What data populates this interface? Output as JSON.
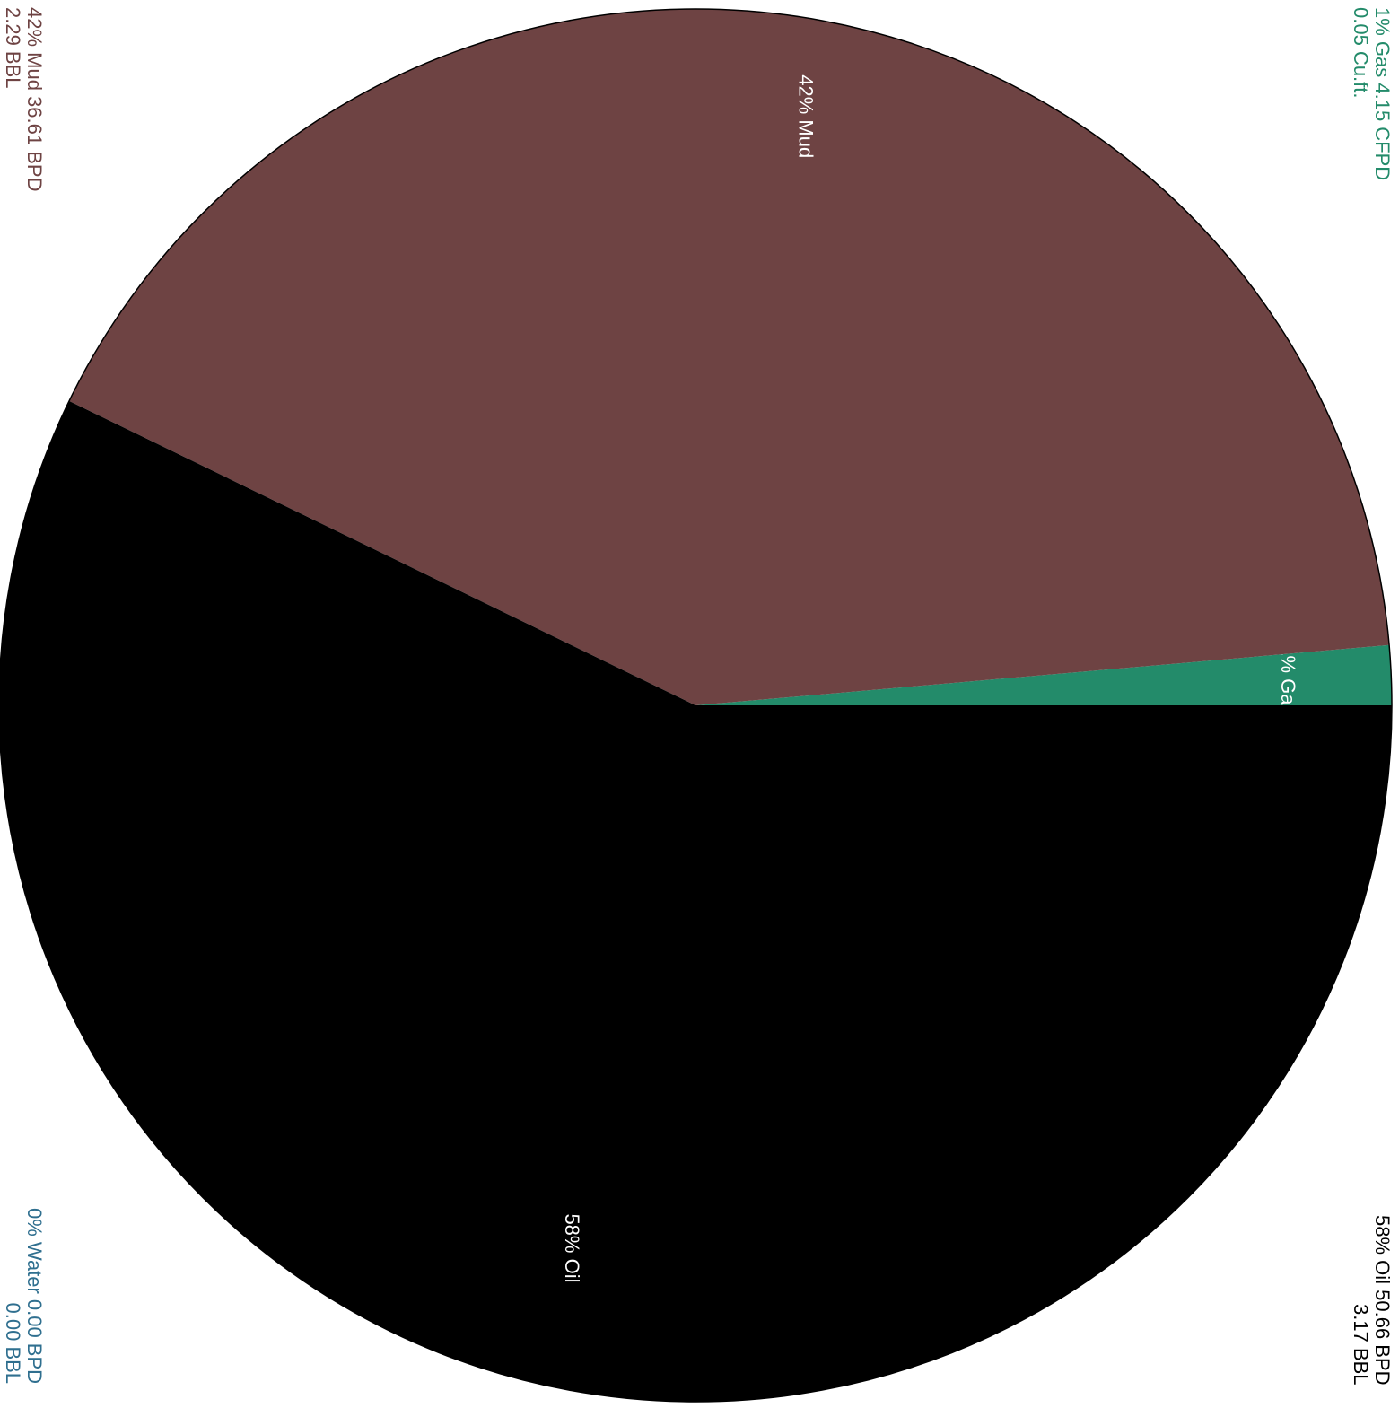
{
  "chart_data": {
    "type": "pie",
    "slices": [
      {
        "name": "Oil",
        "percent_label": "58% Oil",
        "value": 58,
        "color": "#000000"
      },
      {
        "name": "Mud",
        "percent_label": "42% Mud",
        "value": 42,
        "color": "#6e4343"
      },
      {
        "name": "Gas",
        "percent_label": "1% Gas",
        "value": 1.4,
        "color": "#238b6a"
      },
      {
        "name": "Water",
        "percent_label": "0% Water",
        "value": 0,
        "color": "#2f6f8f"
      }
    ],
    "legend": {
      "mud": {
        "line1": "42% Mud 36.61 BPD",
        "line2": "2.29 BBL",
        "color": "#6e4343",
        "position": "top-left"
      },
      "gas": {
        "line1": "1% Gas 4.15 CFPD",
        "line2": "0.05 Cu.ft.",
        "color": "#238b6a",
        "position": "top-right"
      },
      "water": {
        "line1": "0% Water 0.00 BPD",
        "line2": "0.00 BBL",
        "color": "#2f6f8f",
        "position": "bottom-left"
      },
      "oil": {
        "line1": "58% Oil 50.66 BPD",
        "line2": "3.17 BBL",
        "color": "#000000",
        "position": "bottom-right"
      }
    }
  }
}
